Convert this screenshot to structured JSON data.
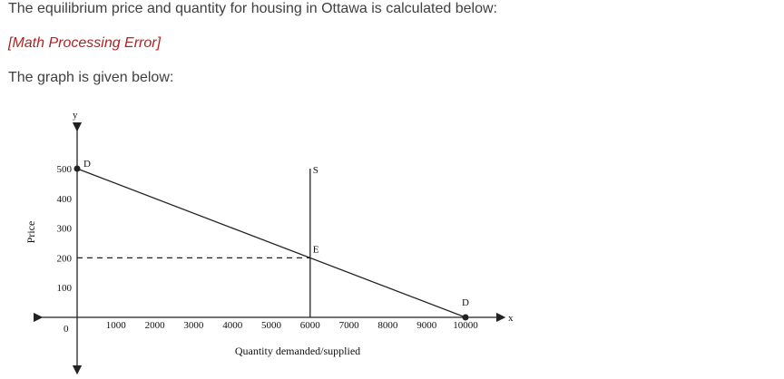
{
  "text": {
    "intro": "The equilibrium price and quantity for housing in Ottawa is calculated below:",
    "math_error": "[Math Processing Error]",
    "graph_intro": "The graph is given below:"
  },
  "chart_data": {
    "type": "line",
    "xlabel": "Quantity demanded/supplied",
    "ylabel": "Price",
    "x_axis_letter": "x",
    "y_axis_letter": "y",
    "xlim": [
      0,
      10000
    ],
    "ylim": [
      0,
      500
    ],
    "x_ticks": [
      "1000",
      "2000",
      "3000",
      "4000",
      "5000",
      "6000",
      "7000",
      "8000",
      "9000",
      "10000"
    ],
    "y_ticks": [
      "500",
      "400",
      "300",
      "200",
      "100"
    ],
    "origin_label": "0",
    "series": [
      {
        "name": "D",
        "points": [
          [
            0,
            500
          ],
          [
            10000,
            0
          ]
        ]
      },
      {
        "name": "S",
        "points": [
          [
            6000,
            0
          ],
          [
            6000,
            500
          ]
        ]
      }
    ],
    "equilibrium": {
      "label": "E",
      "x": 6000,
      "y": 200
    },
    "demand_end_label": "D",
    "supply_label": "S",
    "colors": {
      "text": "#404040",
      "error": "#b22222",
      "lines": "#222222"
    }
  }
}
